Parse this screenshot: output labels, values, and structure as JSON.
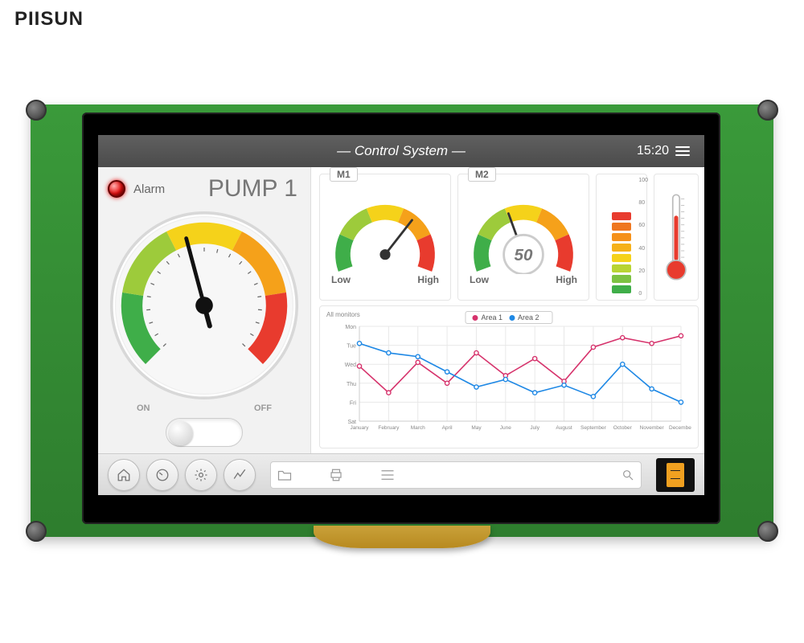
{
  "brand": "PIISUN",
  "header": {
    "title": "— Control System —",
    "time": "15:20"
  },
  "pump": {
    "alarm_label": "Alarm",
    "title": "PUMP 1",
    "toggle_on": "ON",
    "toggle_off": "OFF",
    "gauge": {
      "value_angle_deg": -105,
      "arc_start_deg": -225,
      "arc_end_deg": 45,
      "segments": [
        {
          "from": -225,
          "to": -171,
          "color": "#3fae49"
        },
        {
          "from": -171,
          "to": -117,
          "color": "#9dcb3b"
        },
        {
          "from": -117,
          "to": -63,
          "color": "#f5d21a"
        },
        {
          "from": -63,
          "to": -9,
          "color": "#f5a11a"
        },
        {
          "from": -9,
          "to": 45,
          "color": "#e83b2e"
        }
      ],
      "dial_bg": "#ffffff",
      "border": "#dcdcdc"
    }
  },
  "m_gauges": [
    {
      "tag": "M1",
      "low": "Low",
      "high": "High",
      "needle_deg": 38,
      "value": null
    },
    {
      "tag": "M2",
      "low": "Low",
      "high": "High",
      "needle_deg": -20,
      "value": "50"
    }
  ],
  "bar_meter": {
    "scale": [
      "100",
      "80",
      "60",
      "40",
      "20",
      "0"
    ],
    "segments": [
      {
        "color": "#3fae49"
      },
      {
        "color": "#7cc242"
      },
      {
        "color": "#b8d433"
      },
      {
        "color": "#f5d21a"
      },
      {
        "color": "#f5b11a"
      },
      {
        "color": "#f5911a"
      },
      {
        "color": "#ef7720"
      },
      {
        "color": "#e83b2e"
      }
    ]
  },
  "thermo": {
    "fill_color": "#e83b2e",
    "outline": "#aaaaaa",
    "level": 0.68
  },
  "chart": {
    "title": "All monitors",
    "legend": [
      {
        "label": "Area 1",
        "color": "#d6336c"
      },
      {
        "label": "Area 2",
        "color": "#1e88e5"
      }
    ],
    "y_labels": [
      "Mon",
      "Tue",
      "Wed",
      "Thu",
      "Fri",
      "Sat"
    ],
    "x_labels": [
      "January",
      "February",
      "March",
      "April",
      "May",
      "June",
      "July",
      "August",
      "September",
      "October",
      "November",
      "December"
    ],
    "series": [
      {
        "color": "#d6336c",
        "points": [
          58,
          30,
          62,
          40,
          72,
          48,
          66,
          42,
          78,
          88,
          82,
          90
        ]
      },
      {
        "color": "#1e88e5",
        "points": [
          82,
          72,
          68,
          52,
          36,
          44,
          30,
          38,
          26,
          60,
          34,
          20
        ]
      }
    ],
    "grid_color": "#e8e8e8",
    "axis_color": "#cccccc",
    "y_range": [
      0,
      100
    ]
  },
  "bottombar": {
    "left_icons": [
      "home-icon",
      "gauge-icon",
      "gear-icon",
      "chart-icon"
    ],
    "search_icons": [
      "folder-icon",
      "print-icon",
      "align-icon",
      "search-icon"
    ]
  },
  "colors": {
    "pcb": "#2e7d2e",
    "bezel": "#000000",
    "titlebar": "#555555",
    "panel_bg": "#f2f2f2",
    "led": "#e81010"
  }
}
